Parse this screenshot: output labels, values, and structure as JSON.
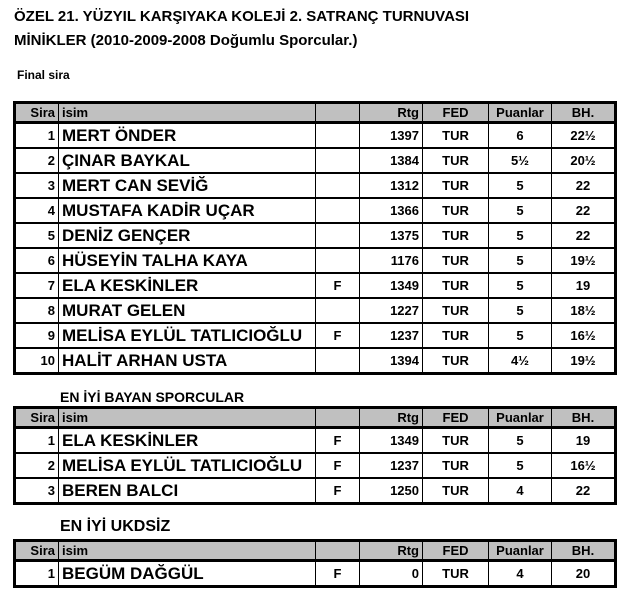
{
  "title_line1": "ÖZEL 21. YÜZYIL KARŞIYAKA KOLEJİ 2. SATRANÇ TURNUVASI",
  "title_line2": "MİNİKLER (2010-2009-2008 Doğumlu Sporcular.)",
  "final_label": "Final sira",
  "headers": [
    "Sira",
    "isim",
    "",
    "Rtg",
    "FED",
    "Puanlar",
    "BH."
  ],
  "final_rows": [
    [
      "1",
      "MERT ÖNDER",
      "",
      "1397",
      "TUR",
      "6",
      "22½"
    ],
    [
      "2",
      "ÇINAR BAYKAL",
      "",
      "1384",
      "TUR",
      "5½",
      "20½"
    ],
    [
      "3",
      "MERT CAN SEVİĞ",
      "",
      "1312",
      "TUR",
      "5",
      "22"
    ],
    [
      "4",
      "MUSTAFA KADİR UÇAR",
      "",
      "1366",
      "TUR",
      "5",
      "22"
    ],
    [
      "5",
      "DENİZ GENÇER",
      "",
      "1375",
      "TUR",
      "5",
      "22"
    ],
    [
      "6",
      "HÜSEYİN TALHA KAYA",
      "",
      "1176",
      "TUR",
      "5",
      "19½"
    ],
    [
      "7",
      "ELA KESKİNLER",
      "F",
      "1349",
      "TUR",
      "5",
      "19"
    ],
    [
      "8",
      "MURAT GELEN",
      "",
      "1227",
      "TUR",
      "5",
      "18½"
    ],
    [
      "9",
      "MELİSA EYLÜL TATLICIOĞLU",
      "F",
      "1237",
      "TUR",
      "5",
      "16½"
    ],
    [
      "10",
      "HALİT ARHAN USTA",
      "",
      "1394",
      "TUR",
      "4½",
      "19½"
    ]
  ],
  "women_title": "EN İYİ BAYAN SPORCULAR",
  "women_rows": [
    [
      "1",
      "ELA KESKİNLER",
      "F",
      "1349",
      "TUR",
      "5",
      "19"
    ],
    [
      "2",
      "MELİSA EYLÜL TATLICIOĞLU",
      "F",
      "1237",
      "TUR",
      "5",
      "16½"
    ],
    [
      "3",
      "BEREN BALCI",
      "F",
      "1250",
      "TUR",
      "4",
      "22"
    ]
  ],
  "unrated_title": "EN İYİ UKDSİZ",
  "unrated_rows": [
    [
      "1",
      "BEGÜM DAĞGÜL",
      "F",
      "0",
      "TUR",
      "4",
      "20"
    ]
  ]
}
